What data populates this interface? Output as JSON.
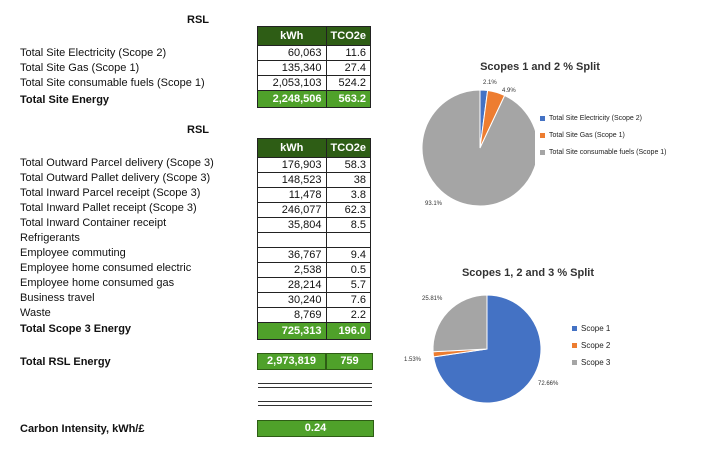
{
  "section1": {
    "heading": "RSL",
    "col_kwh": "kWh",
    "col_tco2e": "TCO2e",
    "rows": [
      {
        "label": "Total Site Electricity (Scope 2)",
        "kwh": "60,063",
        "tco2e": "11.6"
      },
      {
        "label": "Total Site Gas (Scope 1)",
        "kwh": "135,340",
        "tco2e": "27.4"
      },
      {
        "label": "Total Site consumable fuels (Scope 1)",
        "kwh": "2,053,103",
        "tco2e": "524.2"
      }
    ],
    "total": {
      "label": "Total Site Energy",
      "kwh": "2,248,506",
      "tco2e": "563.2"
    }
  },
  "section2": {
    "heading": "RSL",
    "col_kwh": "kWh",
    "col_tco2e": "TCO2e",
    "rows": [
      {
        "label": "Total Outward Parcel  delivery (Scope 3)",
        "kwh": "176,903",
        "tco2e": "58.3"
      },
      {
        "label": "Total Outward Pallet  delivery (Scope 3)",
        "kwh": "148,523",
        "tco2e": "38"
      },
      {
        "label": "Total Inward Parcel receipt (Scope 3)",
        "kwh": "11,478",
        "tco2e": "3.8"
      },
      {
        "label": "Total Inward Pallet  receipt  (Scope 3)",
        "kwh": "246,077",
        "tco2e": "62.3"
      },
      {
        "label": "Total Inward Container receipt",
        "kwh": "35,804",
        "tco2e": "8.5"
      },
      {
        "label": "Refrigerants",
        "kwh": "",
        "tco2e": ""
      },
      {
        "label": "Employee commuting",
        "kwh": "36,767",
        "tco2e": "9.4"
      },
      {
        "label": "Employee home consumed electric",
        "kwh": "2,538",
        "tco2e": "0.5"
      },
      {
        "label": "Employee home consumed gas",
        "kwh": "28,214",
        "tco2e": "5.7"
      },
      {
        "label": "Business travel",
        "kwh": "30,240",
        "tco2e": "7.6"
      },
      {
        "label": "Waste",
        "kwh": "8,769",
        "tco2e": "2.2"
      }
    ],
    "total": {
      "label": "Total Scope 3 Energy",
      "kwh": "725,313",
      "tco2e": "196.0"
    }
  },
  "rsl_total": {
    "label": "Total RSL Energy",
    "kwh": "2,973,819",
    "tco2e": "759"
  },
  "carbon_intensity": {
    "label": "Carbon Intensity, kWh/£",
    "value": "0.24"
  },
  "colors": {
    "blue": "#4472c4",
    "orange": "#ed7d31",
    "gray": "#a5a5a5",
    "green": "#4fa12a",
    "dark_green": "#2e5d15"
  },
  "chart_data": [
    {
      "type": "pie",
      "title": "Scopes 1 and 2 % Split",
      "categories": [
        "Total Site Electricity (Scope 2)",
        "Total Site Gas (Scope 1)",
        "Total Site consumable fuels (Scope 1)"
      ],
      "values": [
        2.1,
        4.9,
        93.1
      ],
      "data_labels": [
        "2.1%",
        "4.9%",
        "93.1%"
      ],
      "colors": [
        "#4472c4",
        "#ed7d31",
        "#a5a5a5"
      ],
      "legend": "right"
    },
    {
      "type": "pie",
      "title": "Scopes 1, 2 and 3 % Split",
      "categories": [
        "Scope 1",
        "Scope 2",
        "Scope 3"
      ],
      "values": [
        72.66,
        1.53,
        25.81
      ],
      "data_labels": [
        "72.66%",
        "1.53%",
        "25.81%"
      ],
      "colors": [
        "#4472c4",
        "#ed7d31",
        "#a5a5a5"
      ],
      "legend": "right"
    }
  ]
}
